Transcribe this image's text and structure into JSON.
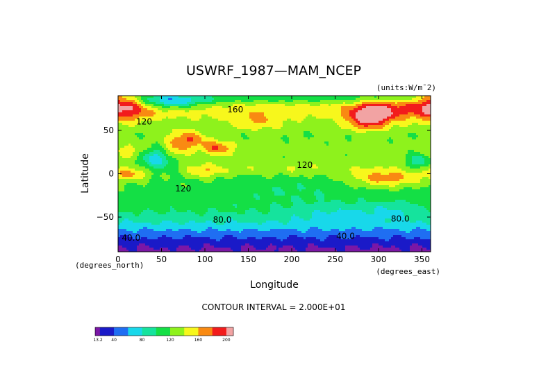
{
  "chart_data": {
    "type": "heatmap",
    "title": "USWRF_1987—MAM_NCEP",
    "units": "(units:W/m¯2)",
    "xlabel": "Longitude",
    "ylabel": "Latitude",
    "x_unit_note": "(degrees_east)",
    "y_unit_note": "(degrees_north)",
    "xlim": [
      0,
      360
    ],
    "ylim": [
      -90,
      90
    ],
    "x_ticks": [
      0,
      50,
      100,
      150,
      200,
      250,
      300,
      350
    ],
    "y_ticks": [
      50,
      0,
      -50
    ],
    "contour_interval_text": "CONTOUR INTERVAL = 2.000E+01",
    "contour_labels": [
      {
        "text": "160",
        "lon": 135,
        "lat": 74
      },
      {
        "text": "120",
        "lon": 30,
        "lat": 60
      },
      {
        "text": "120",
        "lon": 215,
        "lat": 10
      },
      {
        "text": "120",
        "lon": 75,
        "lat": -17
      },
      {
        "text": "80.0",
        "lon": 120,
        "lat": -53
      },
      {
        "text": "80.0",
        "lon": 325,
        "lat": -52
      },
      {
        "text": "40.0",
        "lon": 15,
        "lat": -74
      },
      {
        "text": "40.0",
        "lon": 262,
        "lat": -72
      }
    ],
    "colorbar": {
      "tick_labels": [
        "13.2",
        "40",
        "80",
        "120",
        "160",
        "200"
      ],
      "bins": [
        {
          "lo": 13.2,
          "hi": 20,
          "color": "#7b17a6"
        },
        {
          "lo": 20,
          "hi": 40,
          "color": "#1a1ac8"
        },
        {
          "lo": 40,
          "hi": 60,
          "color": "#1f6ef2"
        },
        {
          "lo": 60,
          "hi": 80,
          "color": "#18d8ea"
        },
        {
          "lo": 80,
          "hi": 100,
          "color": "#15e39d"
        },
        {
          "lo": 100,
          "hi": 120,
          "color": "#14df45"
        },
        {
          "lo": 120,
          "hi": 140,
          "color": "#8ef21c"
        },
        {
          "lo": 140,
          "hi": 160,
          "color": "#f7f71c"
        },
        {
          "lo": 160,
          "hi": 180,
          "color": "#f98a12"
        },
        {
          "lo": 180,
          "hi": 200,
          "color": "#f21c1c"
        },
        {
          "lo": 200,
          "hi": 210,
          "color": "#f2a3a3"
        }
      ]
    },
    "lat_profile": [
      {
        "lat": -90,
        "value": 15
      },
      {
        "lat": -83,
        "value": 22
      },
      {
        "lat": -75,
        "value": 38
      },
      {
        "lat": -68,
        "value": 52
      },
      {
        "lat": -60,
        "value": 72
      },
      {
        "lat": -52,
        "value": 88
      },
      {
        "lat": -42,
        "value": 104
      },
      {
        "lat": -30,
        "value": 112
      },
      {
        "lat": -15,
        "value": 114
      },
      {
        "lat": 0,
        "value": 118
      },
      {
        "lat": 15,
        "value": 126
      },
      {
        "lat": 30,
        "value": 128
      },
      {
        "lat": 45,
        "value": 122
      },
      {
        "lat": 60,
        "value": 132
      },
      {
        "lat": 70,
        "value": 150
      },
      {
        "lat": 78,
        "value": 146
      },
      {
        "lat": 86,
        "value": 112
      },
      {
        "lat": 90,
        "value": 108
      }
    ],
    "features": [
      {
        "lon": 5,
        "lat": 80,
        "width": 30,
        "height": 18,
        "amp": 70
      },
      {
        "lon": 60,
        "lat": 83,
        "width": 40,
        "height": 8,
        "amp": -60
      },
      {
        "lon": 300,
        "lat": 72,
        "width": 28,
        "height": 15,
        "amp": 60
      },
      {
        "lon": 285,
        "lat": 62,
        "width": 22,
        "height": 12,
        "amp": 55
      },
      {
        "lon": 80,
        "lat": 40,
        "width": 22,
        "height": 10,
        "amp": 55
      },
      {
        "lon": 115,
        "lat": 30,
        "width": 18,
        "height": 8,
        "amp": 50
      },
      {
        "lon": 160,
        "lat": 60,
        "width": 30,
        "height": 10,
        "amp": 30
      },
      {
        "lon": 45,
        "lat": 18,
        "width": 22,
        "height": 12,
        "amp": -60
      },
      {
        "lon": 65,
        "lat": 25,
        "width": 16,
        "height": 10,
        "amp": 35
      },
      {
        "lon": 15,
        "lat": 25,
        "width": 16,
        "height": 10,
        "amp": 28
      },
      {
        "lon": 15,
        "lat": 0,
        "width": 20,
        "height": 8,
        "amp": 45
      },
      {
        "lon": 100,
        "lat": 3,
        "width": 20,
        "height": 8,
        "amp": 35
      },
      {
        "lon": 310,
        "lat": -5,
        "width": 40,
        "height": 10,
        "amp": 55
      },
      {
        "lon": 345,
        "lat": 15,
        "width": 10,
        "height": 8,
        "amp": -50
      },
      {
        "lon": 200,
        "lat": 5,
        "width": 100,
        "height": 7,
        "amp": 18
      },
      {
        "lon": 260,
        "lat": -45,
        "width": 60,
        "height": 12,
        "amp": -22
      },
      {
        "lon": 200,
        "lat": -20,
        "width": 70,
        "height": 16,
        "amp": -12
      },
      {
        "lon": 320,
        "lat": -40,
        "width": 30,
        "height": 10,
        "amp": -18
      }
    ]
  }
}
